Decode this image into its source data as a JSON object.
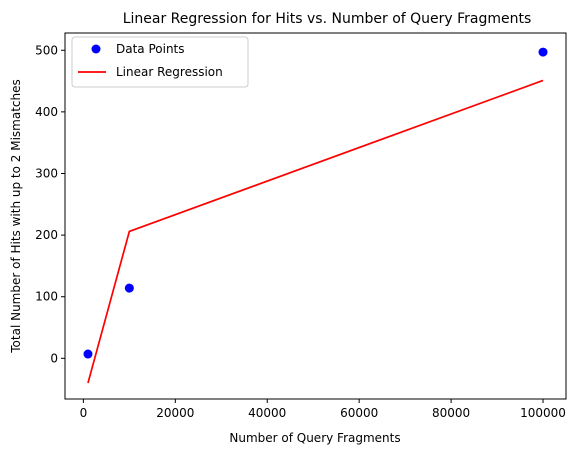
{
  "chart_data": {
    "type": "scatter",
    "title": "Linear Regression for Hits vs. Number of Query Fragments",
    "xlabel": "Number of Query Fragments",
    "ylabel": "Total Number of Hits with up to 2 Mismatches",
    "xlim": [
      -4000,
      105000
    ],
    "ylim": [
      -66,
      528
    ],
    "xticks": [
      0,
      20000,
      40000,
      60000,
      80000,
      100000
    ],
    "xtick_labels": [
      "0",
      "20000",
      "40000",
      "60000",
      "80000",
      "100000"
    ],
    "yticks": [
      0,
      100,
      200,
      300,
      400,
      500
    ],
    "ytick_labels": [
      "0",
      "100",
      "200",
      "300",
      "400",
      "500"
    ],
    "grid": false,
    "legend_position": "top-left",
    "series": [
      {
        "name": "Data Points",
        "kind": "scatter",
        "color": "#0000ff",
        "x": [
          1000,
          10000,
          100000
        ],
        "y": [
          7,
          114,
          497
        ]
      },
      {
        "name": "Linear Regression",
        "kind": "line",
        "color": "#ff0000",
        "x": [
          1000,
          10000,
          100000
        ],
        "y": [
          -40,
          206,
          451
        ]
      }
    ]
  }
}
